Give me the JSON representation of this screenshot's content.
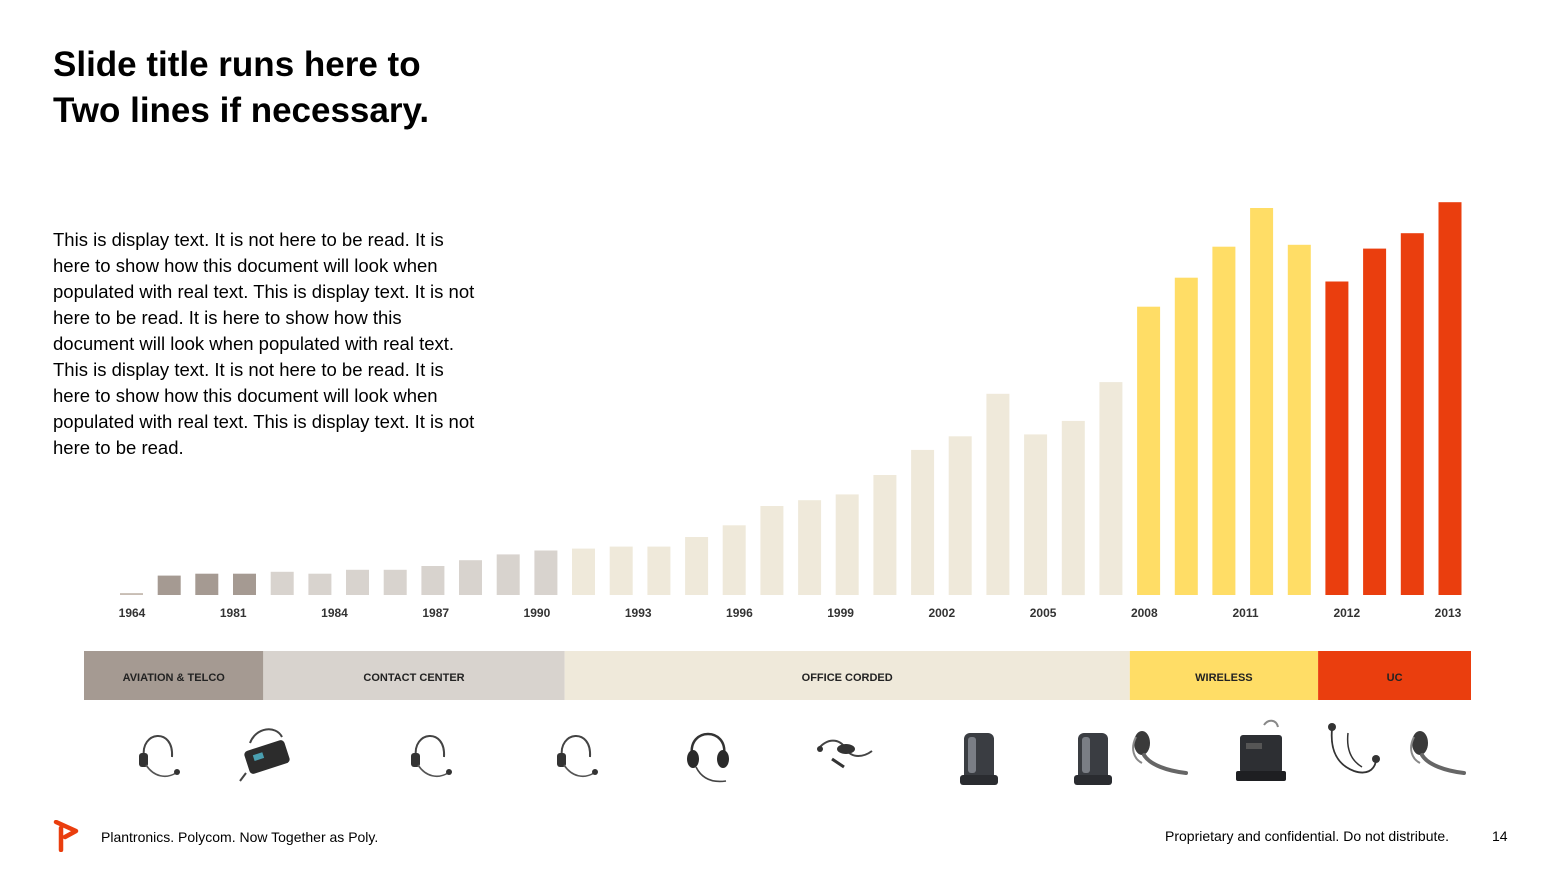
{
  "slide": {
    "title_line1": "Slide title runs here to",
    "title_line2": "Two lines if necessary.",
    "body": "This is display text. It is not here to be read. It is here to show how this document will look when populated with real text. This is display text. It is not here to be read. It is here to show how this document will look when populated with real text. This is display text. It is not here to be read. It is here to show how this document will look when populated with real text. This is display text. It is not here to be read."
  },
  "chart_data": {
    "type": "bar",
    "title": "",
    "xlabel": "",
    "ylabel": "",
    "ylim": [
      0,
      100
    ],
    "grid": false,
    "legend": "none",
    "tick_labels": [
      "1964",
      "1981",
      "1984",
      "1987",
      "1990",
      "1993",
      "1996",
      "1999",
      "2002",
      "2005",
      "2008",
      "2011",
      "2012",
      "2013"
    ],
    "values": [
      0.5,
      5,
      5.5,
      5.5,
      6,
      5.5,
      6.5,
      6.5,
      7.5,
      9,
      10.5,
      11.5,
      12,
      12.5,
      12.5,
      15,
      18,
      23,
      24.5,
      26,
      31,
      37.5,
      41,
      52,
      41.5,
      45,
      55,
      74.5,
      82,
      90,
      100,
      90.5,
      81,
      89.5,
      93.5,
      101.5
    ],
    "bar_colors": [
      "#c8bdb4",
      "#a59a92",
      "#a59a92",
      "#a59a92",
      "#d8d3ce",
      "#d8d3ce",
      "#d8d3ce",
      "#d8d3ce",
      "#d8d3ce",
      "#d8d3ce",
      "#d8d3ce",
      "#d8d3ce",
      "#efe9da",
      "#efe9da",
      "#efe9da",
      "#efe9da",
      "#efe9da",
      "#efe9da",
      "#efe9da",
      "#efe9da",
      "#efe9da",
      "#efe9da",
      "#efe9da",
      "#efe9da",
      "#efe9da",
      "#efe9da",
      "#efe9da",
      "#ffdd66",
      "#ffdd66",
      "#ffdd66",
      "#ffdd66",
      "#ffdd66",
      "#ea3e0e",
      "#ea3e0e",
      "#ea3e0e",
      "#ea3e0e"
    ],
    "segments": [
      {
        "label": "AVIATION & TELCO",
        "color": "#a59a92",
        "first_bar": 0,
        "last_bar": 3
      },
      {
        "label": "CONTACT CENTER",
        "color": "#d8d3ce",
        "first_bar": 4,
        "last_bar": 11
      },
      {
        "label": "OFFICE CORDED",
        "color": "#efe9da",
        "first_bar": 12,
        "last_bar": 26
      },
      {
        "label": "WIRELESS",
        "color": "#ffdd66",
        "first_bar": 27,
        "last_bar": 31
      },
      {
        "label": "UC",
        "color": "#ea3e0e",
        "first_bar": 32,
        "last_bar": 35
      }
    ]
  },
  "products": {
    "icon_names": [
      "headset-monaural-icon",
      "headset-amplifier-icon",
      "headset-monaural-icon",
      "headset-monaural-icon",
      "headset-binaural-icon",
      "usb-headset-cable-icon",
      "wireless-headset-base-icon",
      "wireless-headset-base-icon",
      "bluetooth-earpiece-icon",
      "wireless-base-station-icon",
      "earbud-headset-icon",
      "bluetooth-earpiece-icon"
    ]
  },
  "footer": {
    "brand_color": "#ea3e0e",
    "left": "Plantronics. Polycom. Now Together as Poly.",
    "right": "Proprietary and confidential. Do not distribute.",
    "page": "14"
  }
}
